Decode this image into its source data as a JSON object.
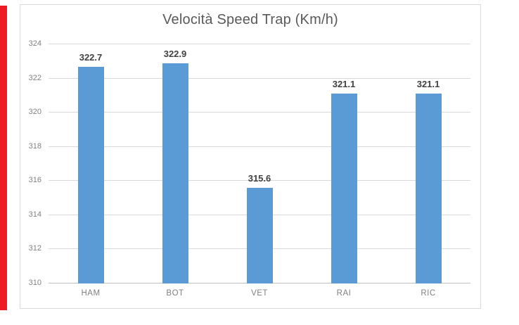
{
  "chart_data": {
    "type": "bar",
    "title": "Velocità Speed Trap (Km/h)",
    "categories": [
      "HAM",
      "BOT",
      "VET",
      "RAI",
      "RIC"
    ],
    "values": [
      322.7,
      322.9,
      315.6,
      321.1,
      321.1
    ],
    "data_labels": [
      "322.7",
      "322.9",
      "315.6",
      "321.1",
      "321.1"
    ],
    "xlabel": "",
    "ylabel": "",
    "ylim": [
      310,
      324
    ],
    "yticks": [
      310,
      312,
      314,
      316,
      318,
      320,
      322,
      324
    ],
    "grid": "horizontal",
    "legend": "none",
    "bar_color": "#5B9BD5"
  },
  "styles": {
    "title_color": "#595959",
    "axis_label_color": "#808080",
    "data_label_color": "#404040",
    "gridline_color": "#D9D9D9",
    "axis_line_color": "#BFBFBF",
    "chart_border_color": "#D9D9D9",
    "left_strip_color": "#ED1C24",
    "background": "#FFFFFF"
  }
}
